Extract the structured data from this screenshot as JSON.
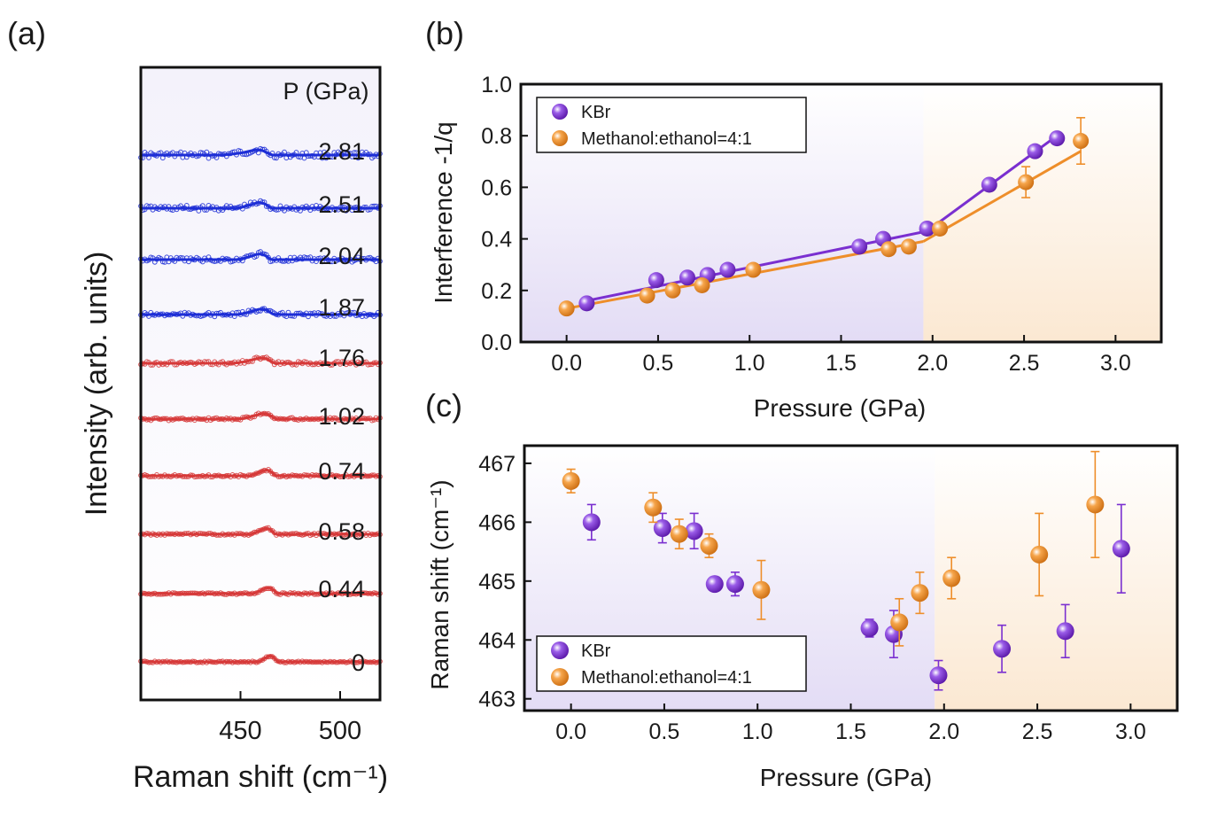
{
  "colors": {
    "blue": "#1e2fd6",
    "red": "#d63a3a",
    "kbr": "#7a2fd0",
    "meth": "#ee8e2a",
    "purple_bg": "#ebe6f7",
    "orange_bg": "#fbeedd"
  },
  "chart_data": [
    {
      "panel_label": "(a)",
      "type": "line",
      "xlabel": "Raman shift (cm⁻¹)",
      "ylabel": "Intensity (arb. units)",
      "xlim": [
        400,
        520
      ],
      "xticks": [
        "450",
        "500"
      ],
      "legend_title": "P (GPa)",
      "series": [
        {
          "name": "2.81",
          "color": "blue",
          "peak": 461,
          "amp": 0.55,
          "width": 7,
          "noise": 0.18
        },
        {
          "name": "2.51",
          "color": "blue",
          "peak": 462,
          "amp": 0.75,
          "width": 7,
          "noise": 0.16
        },
        {
          "name": "2.04",
          "color": "blue",
          "peak": 462,
          "amp": 0.8,
          "width": 7,
          "noise": 0.15
        },
        {
          "name": "1.87",
          "color": "blue",
          "peak": 463,
          "amp": 0.75,
          "width": 7,
          "noise": 0.12
        },
        {
          "name": "1.76",
          "color": "red",
          "peak": 463,
          "amp": 0.65,
          "width": 7,
          "noise": 0.1
        },
        {
          "name": "1.02",
          "color": "red",
          "peak": 464,
          "amp": 0.7,
          "width": 7,
          "noise": 0.08
        },
        {
          "name": "0.74",
          "color": "red",
          "peak": 465,
          "amp": 0.9,
          "width": 6,
          "noise": 0.06
        },
        {
          "name": "0.58",
          "color": "red",
          "peak": 465,
          "amp": 0.95,
          "width": 6,
          "noise": 0.06
        },
        {
          "name": "0.44",
          "color": "red",
          "peak": 466,
          "amp": 1.0,
          "width": 6,
          "noise": 0.05
        },
        {
          "name": "0",
          "color": "red",
          "peak": 466.7,
          "amp": 1.05,
          "width": 5,
          "noise": 0.04
        }
      ]
    },
    {
      "panel_label": "(b)",
      "type": "scatter",
      "xlabel": "Pressure (GPa)",
      "ylabel": "Interference -1/q",
      "xlim": [
        -0.25,
        3.25
      ],
      "ylim": [
        0.0,
        1.0
      ],
      "xticks": [
        "0.0",
        "0.5",
        "1.0",
        "1.5",
        "2.0",
        "2.5",
        "3.0"
      ],
      "yticks": [
        "0.0",
        "0.2",
        "0.4",
        "0.6",
        "0.8",
        "1.0"
      ],
      "legend_position": "top-left",
      "shade_split_x": 1.95,
      "series": [
        {
          "name": "KBr",
          "color": "kbr",
          "x": [
            0.11,
            0.49,
            0.66,
            0.77,
            0.88,
            1.6,
            1.73,
            1.97,
            2.31,
            2.56,
            2.68
          ],
          "y": [
            0.15,
            0.24,
            0.25,
            0.26,
            0.28,
            0.37,
            0.4,
            0.44,
            0.61,
            0.74,
            0.79
          ],
          "err": [
            0,
            0,
            0,
            0,
            0,
            0,
            0,
            0,
            0,
            0,
            0
          ],
          "fit": [
            [
              [
                0.11,
                0.16
              ],
              [
                1.97,
                0.43
              ]
            ],
            [
              [
                1.97,
                0.43
              ],
              [
                2.68,
                0.8
              ]
            ]
          ]
        },
        {
          "name": "Methanol:ethanol=4:1",
          "color": "meth",
          "x": [
            0.0,
            0.44,
            0.58,
            0.74,
            1.02,
            1.76,
            1.87,
            2.04,
            2.51,
            2.81
          ],
          "y": [
            0.13,
            0.18,
            0.2,
            0.22,
            0.28,
            0.36,
            0.37,
            0.44,
            0.62,
            0.78
          ],
          "err": [
            0,
            0,
            0,
            0,
            0,
            0,
            0,
            0,
            0.06,
            0.09
          ],
          "fit": [
            [
              [
                0.0,
                0.13
              ],
              [
                1.95,
                0.39
              ]
            ],
            [
              [
                1.95,
                0.39
              ],
              [
                2.81,
                0.74
              ]
            ]
          ]
        }
      ]
    },
    {
      "panel_label": "(c)",
      "type": "scatter",
      "xlabel": "Pressure (GPa)",
      "ylabel": "Raman shift (cm⁻¹)",
      "xlim": [
        -0.25,
        3.25
      ],
      "ylim": [
        462.8,
        467.3
      ],
      "xticks": [
        "0.0",
        "0.5",
        "1.0",
        "1.5",
        "2.0",
        "2.5",
        "3.0"
      ],
      "yticks": [
        "463",
        "464",
        "465",
        "466",
        "467"
      ],
      "legend_position": "bottom-left",
      "shade_split_x": 1.95,
      "series": [
        {
          "name": "KBr",
          "color": "kbr",
          "x": [
            0.11,
            0.49,
            0.66,
            0.77,
            0.88,
            1.6,
            1.73,
            1.97,
            2.31,
            2.65,
            2.95
          ],
          "y": [
            466.0,
            465.9,
            465.85,
            464.95,
            464.95,
            464.2,
            464.1,
            463.4,
            463.85,
            464.15,
            465.55
          ],
          "err": [
            0.3,
            0.25,
            0.3,
            0.1,
            0.2,
            0.15,
            0.4,
            0.25,
            0.4,
            0.45,
            0.75
          ]
        },
        {
          "name": "Methanol:ethanol=4:1",
          "color": "meth",
          "x": [
            0.0,
            0.44,
            0.58,
            0.74,
            1.02,
            1.76,
            1.87,
            2.04,
            2.51,
            2.81
          ],
          "y": [
            466.7,
            466.25,
            465.8,
            465.6,
            464.85,
            464.3,
            464.8,
            465.05,
            465.45,
            466.3
          ],
          "err": [
            0.2,
            0.25,
            0.25,
            0.2,
            0.5,
            0.4,
            0.35,
            0.35,
            0.7,
            0.9
          ]
        }
      ]
    }
  ]
}
